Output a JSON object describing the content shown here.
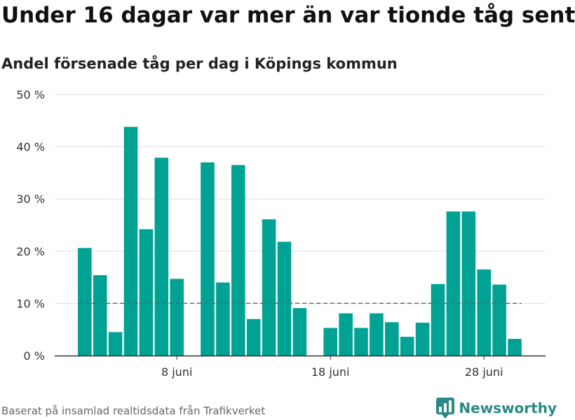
{
  "title": "Under 16 dagar var mer än var tionde tåg sent",
  "subtitle": "Andel försenade tåg per dag i Köpings kommun",
  "source": "Baserat på insamlad realtidsdata från Trafikverket",
  "brand": "Newsworthy",
  "colors": {
    "bar": "#00a294",
    "reference": "#666666",
    "grid": "#dddddd",
    "axis": "#333333",
    "brand": "#2a8a85"
  },
  "chart_data": {
    "type": "bar",
    "x": [
      "2 juni",
      "3 juni",
      "4 juni",
      "5 juni",
      "6 juni",
      "7 juni",
      "8 juni",
      "9 juni",
      "10 juni",
      "11 juni",
      "12 juni",
      "13 juni",
      "14 juni",
      "15 juni",
      "16 juni",
      "17 juni",
      "18 juni",
      "19 juni",
      "20 juni",
      "21 juni",
      "22 juni",
      "23 juni",
      "24 juni",
      "25 juni",
      "26 juni",
      "27 juni",
      "28 juni",
      "29 juni",
      "30 juni"
    ],
    "values": [
      20.6,
      15.4,
      4.5,
      43.8,
      24.2,
      37.9,
      14.7,
      null,
      37.0,
      14.0,
      36.5,
      7.0,
      26.1,
      21.8,
      9.1,
      null,
      5.3,
      8.1,
      5.3,
      8.1,
      6.4,
      3.6,
      6.3,
      13.7,
      27.6,
      27.6,
      16.5,
      13.6,
      3.2
    ],
    "xticks": [
      {
        "index": 6,
        "label": "8 juni"
      },
      {
        "index": 16,
        "label": "18 juni"
      },
      {
        "index": 26,
        "label": "28 juni"
      }
    ],
    "yticks": [
      {
        "value": 0,
        "label": "0 %"
      },
      {
        "value": 10,
        "label": "10 %"
      },
      {
        "value": 20,
        "label": "20 %"
      },
      {
        "value": 30,
        "label": "30 %"
      },
      {
        "value": 40,
        "label": "40 %"
      },
      {
        "value": 50,
        "label": "50 %"
      }
    ],
    "ylim": [
      0,
      50
    ],
    "reference_line": 10,
    "grid": true
  }
}
